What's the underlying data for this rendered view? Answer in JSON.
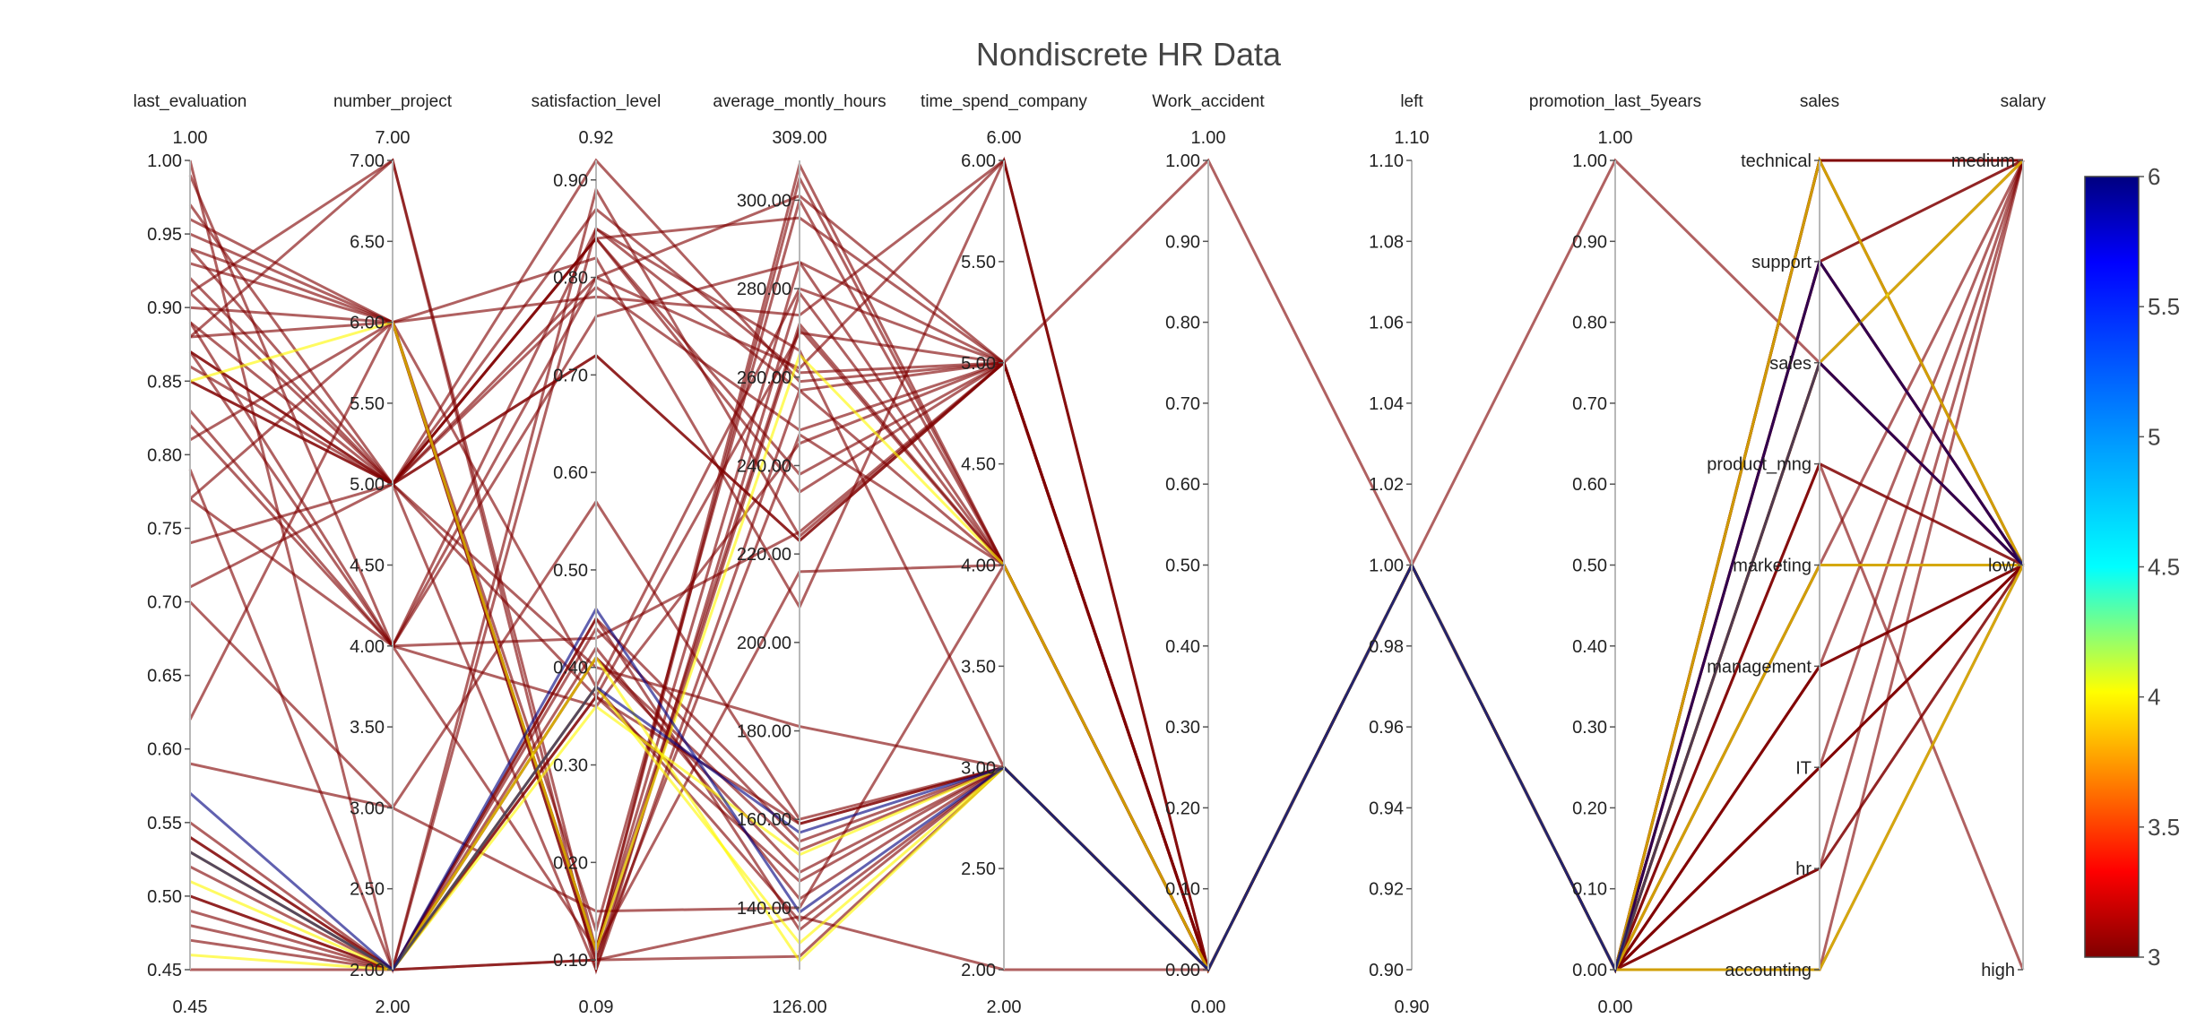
{
  "chart_data": {
    "type": "parallel_coordinates",
    "title": "Nondiscrete HR Data",
    "colorscale": {
      "name": "Jet",
      "reversed": true,
      "min": 3,
      "max": 6,
      "ticks": [
        "3",
        "3.5",
        "4",
        "4.5",
        "5",
        "5.5",
        "6"
      ],
      "stops": [
        [
          0.0,
          "#800000"
        ],
        [
          0.11,
          "#ff0000"
        ],
        [
          0.34,
          "#ffff00"
        ],
        [
          0.5,
          "#00ffff"
        ],
        [
          0.65,
          "#00a0ff"
        ],
        [
          0.89,
          "#0000ff"
        ],
        [
          1.0,
          "#000080"
        ]
      ]
    },
    "dimensions": [
      {
        "key": "last_evaluation",
        "label": "last_evaluation",
        "range": [
          0.45,
          1.0
        ],
        "range_labels": [
          "0.45",
          "1.00"
        ],
        "ticks": [
          "0.45",
          "0.50",
          "0.55",
          "0.60",
          "0.65",
          "0.70",
          "0.75",
          "0.80",
          "0.85",
          "0.90",
          "0.95",
          "1.00"
        ]
      },
      {
        "key": "number_project",
        "label": "number_project",
        "range": [
          2,
          7
        ],
        "range_labels": [
          "2.00",
          "7.00"
        ],
        "ticks": [
          "2.00",
          "2.50",
          "3.00",
          "3.50",
          "4.00",
          "4.50",
          "5.00",
          "5.50",
          "6.00",
          "6.50",
          "7.00"
        ]
      },
      {
        "key": "satisfaction_level",
        "label": "satisfaction_level",
        "range": [
          0.09,
          0.92
        ],
        "range_labels": [
          "0.09",
          "0.92"
        ],
        "ticks": [
          "0.10",
          "0.20",
          "0.30",
          "0.40",
          "0.50",
          "0.60",
          "0.70",
          "0.80",
          "0.90"
        ]
      },
      {
        "key": "average_montly_hours",
        "label": "average_montly_hours",
        "range": [
          126,
          309
        ],
        "range_labels": [
          "126.00",
          "309.00"
        ],
        "ticks": [
          "140.00",
          "160.00",
          "180.00",
          "200.00",
          "220.00",
          "240.00",
          "260.00",
          "280.00",
          "300.00"
        ]
      },
      {
        "key": "time_spend_company",
        "label": "time_spend_company",
        "range": [
          2,
          6
        ],
        "range_labels": [
          "2.00",
          "6.00"
        ],
        "ticks": [
          "2.00",
          "2.50",
          "3.00",
          "3.50",
          "4.00",
          "4.50",
          "5.00",
          "5.50",
          "6.00"
        ]
      },
      {
        "key": "Work_accident",
        "label": "Work_accident",
        "range": [
          0,
          1
        ],
        "range_labels": [
          "0.00",
          "1.00"
        ],
        "ticks": [
          "0.00",
          "0.10",
          "0.20",
          "0.30",
          "0.40",
          "0.50",
          "0.60",
          "0.70",
          "0.80",
          "0.90",
          "1.00"
        ]
      },
      {
        "key": "left",
        "label": "left",
        "range": [
          0.9,
          1.1
        ],
        "range_labels": [
          "0.90",
          "1.10"
        ],
        "ticks": [
          "0.90",
          "0.92",
          "0.94",
          "0.96",
          "0.98",
          "1.00",
          "1.02",
          "1.04",
          "1.06",
          "1.08",
          "1.10"
        ]
      },
      {
        "key": "promotion_last_5years",
        "label": "promotion_last_5years",
        "range": [
          0,
          1
        ],
        "range_labels": [
          "0.00",
          "1.00"
        ],
        "ticks": [
          "0.00",
          "0.10",
          "0.20",
          "0.30",
          "0.40",
          "0.50",
          "0.60",
          "0.70",
          "0.80",
          "0.90",
          "1.00"
        ]
      },
      {
        "key": "sales",
        "label": "sales",
        "categorical": true,
        "ticks": [
          "accounting",
          "hr",
          "IT",
          "management",
          "marketing",
          "product_mng",
          "sales",
          "support",
          "technical"
        ]
      },
      {
        "key": "salary",
        "label": "salary",
        "categorical": true,
        "ticks": [
          "high",
          "low",
          "medium"
        ]
      }
    ],
    "rows": [
      [
        0.53,
        2,
        0.38,
        157,
        3,
        0,
        1,
        0,
        "sales",
        "low",
        6
      ],
      [
        0.57,
        2,
        0.46,
        139,
        3,
        0,
        1,
        0,
        "support",
        "low",
        6
      ],
      [
        0.85,
        6,
        0.11,
        265,
        4,
        0,
        1,
        0,
        "sales",
        "medium",
        4
      ],
      [
        0.53,
        2,
        0.41,
        128,
        3,
        0,
        1,
        0,
        "accounting",
        "low",
        4
      ],
      [
        0.51,
        2,
        0.38,
        132,
        3,
        0,
        1,
        0,
        "marketing",
        "low",
        4
      ],
      [
        0.46,
        2,
        0.36,
        152,
        3,
        0,
        1,
        0,
        "technical",
        "low",
        4
      ],
      [
        0.87,
        5,
        0.8,
        262,
        6,
        0,
        1,
        0,
        "sales",
        "low",
        3
      ],
      [
        0.88,
        7,
        0.11,
        272,
        4,
        0,
        1,
        0,
        "technical",
        "medium",
        3
      ],
      [
        0.87,
        5,
        0.72,
        223,
        5,
        0,
        1,
        0,
        "support",
        "low",
        3
      ],
      [
        0.52,
        2,
        0.37,
        159,
        3,
        0,
        1,
        0,
        "accounting",
        "low",
        3
      ],
      [
        0.5,
        2,
        0.41,
        153,
        3,
        0,
        1,
        0,
        "hr",
        "low",
        3
      ],
      [
        0.77,
        6,
        0.1,
        247,
        4,
        0,
        1,
        0,
        "IT",
        "medium",
        3
      ],
      [
        0.85,
        5,
        0.92,
        259,
        5,
        0,
        1,
        0,
        "management",
        "low",
        3
      ],
      [
        1.0,
        2,
        0.89,
        224,
        5,
        0,
        1,
        0,
        "product_mng",
        "high",
        3
      ],
      [
        0.53,
        2,
        0.42,
        142,
        3,
        0,
        1,
        0,
        "sales",
        "low",
        3
      ],
      [
        0.54,
        2,
        0.45,
        135,
        3,
        0,
        1,
        0,
        "technical",
        "medium",
        3
      ],
      [
        0.81,
        6,
        0.11,
        305,
        4,
        0,
        1,
        1,
        "sales",
        "low",
        3
      ],
      [
        0.92,
        5,
        0.84,
        234,
        5,
        0,
        1,
        0,
        "marketing",
        "low",
        3
      ],
      [
        0.55,
        2,
        0.41,
        148,
        3,
        0,
        1,
        0,
        "management",
        "medium",
        3
      ],
      [
        0.87,
        4,
        0.36,
        245,
        5,
        0,
        1,
        0,
        "technical",
        "low",
        3
      ],
      [
        0.94,
        6,
        0.38,
        280,
        5,
        0,
        1,
        0,
        "support",
        "low",
        3
      ],
      [
        0.54,
        2,
        0.45,
        159,
        3,
        0,
        1,
        0,
        "accounting",
        "medium",
        3
      ],
      [
        0.99,
        4,
        0.8,
        301,
        5,
        0,
        1,
        0,
        "IT",
        "low",
        3
      ],
      [
        0.91,
        5,
        0.37,
        270,
        5,
        0,
        1,
        0,
        "sales",
        "low",
        3
      ],
      [
        0.47,
        2,
        0.1,
        138,
        2,
        0,
        1,
        0,
        "product_mng",
        "low",
        3
      ],
      [
        0.89,
        5,
        0.09,
        257,
        4,
        0,
        1,
        0,
        "technical",
        "medium",
        3
      ],
      [
        0.45,
        2,
        0.1,
        129,
        3,
        0,
        1,
        0,
        "hr",
        "medium",
        3
      ],
      [
        0.71,
        5,
        0.87,
        261,
        5,
        1,
        1,
        0,
        "sales",
        "low",
        3
      ],
      [
        0.62,
        6,
        0.78,
        274,
        6,
        0,
        1,
        0,
        "support",
        "medium",
        3
      ],
      [
        0.89,
        4,
        0.11,
        216,
        4,
        0,
        1,
        0,
        "IT",
        "low",
        3
      ],
      [
        0.79,
        2,
        0.85,
        266,
        3,
        0,
        1,
        0,
        "marketing",
        "low",
        3
      ],
      [
        0.95,
        6,
        0.11,
        308,
        4,
        0,
        1,
        0,
        "technical",
        "medium",
        3
      ],
      [
        0.83,
        4,
        0.76,
        286,
        5,
        0,
        1,
        0,
        "support",
        "low",
        3
      ],
      [
        0.86,
        5,
        0.4,
        181,
        3,
        0,
        1,
        0,
        "management",
        "low",
        3
      ],
      [
        0.74,
        5,
        0.72,
        223,
        5,
        0,
        1,
        0,
        "sales",
        "medium",
        3
      ],
      [
        0.49,
        2,
        0.38,
        137,
        3,
        0,
        1,
        0,
        "accounting",
        "low",
        3
      ],
      [
        0.91,
        7,
        0.09,
        279,
        4,
        0,
        1,
        0,
        "technical",
        "low",
        3
      ],
      [
        0.7,
        3,
        0.57,
        160,
        3,
        0,
        1,
        0,
        "hr",
        "low",
        3
      ],
      [
        0.9,
        6,
        0.82,
        208,
        6,
        0,
        1,
        0,
        "support",
        "medium",
        3
      ],
      [
        0.77,
        4,
        0.43,
        225,
        5,
        0,
        1,
        0,
        "IT",
        "low",
        3
      ],
      [
        0.59,
        3,
        0.15,
        140,
        4,
        0,
        1,
        0,
        "product_mng",
        "low",
        3
      ],
      [
        0.93,
        6,
        0.11,
        286,
        4,
        0,
        1,
        0,
        "sales",
        "medium",
        3
      ],
      [
        0.97,
        5,
        0.84,
        238,
        5,
        0,
        1,
        0,
        "technical",
        "low",
        3
      ],
      [
        0.48,
        2,
        0.37,
        146,
        3,
        0,
        1,
        0,
        "support",
        "low",
        3
      ],
      [
        0.85,
        5,
        0.79,
        248,
        5,
        0,
        1,
        0,
        "marketing",
        "medium",
        3
      ],
      [
        0.96,
        6,
        0.1,
        271,
        4,
        0,
        1,
        0,
        "IT",
        "low",
        3
      ],
      [
        0.5,
        2,
        0.44,
        155,
        3,
        0,
        1,
        0,
        "management",
        "low",
        3
      ],
      [
        0.82,
        4,
        0.85,
        257,
        5,
        0,
        1,
        0,
        "technical",
        "medium",
        3
      ],
      [
        0.94,
        5,
        0.84,
        296,
        5,
        0,
        1,
        0,
        "sales",
        "low",
        3
      ],
      [
        0.88,
        6,
        0.13,
        300,
        4,
        0,
        1,
        0,
        "support",
        "low",
        3
      ]
    ]
  }
}
